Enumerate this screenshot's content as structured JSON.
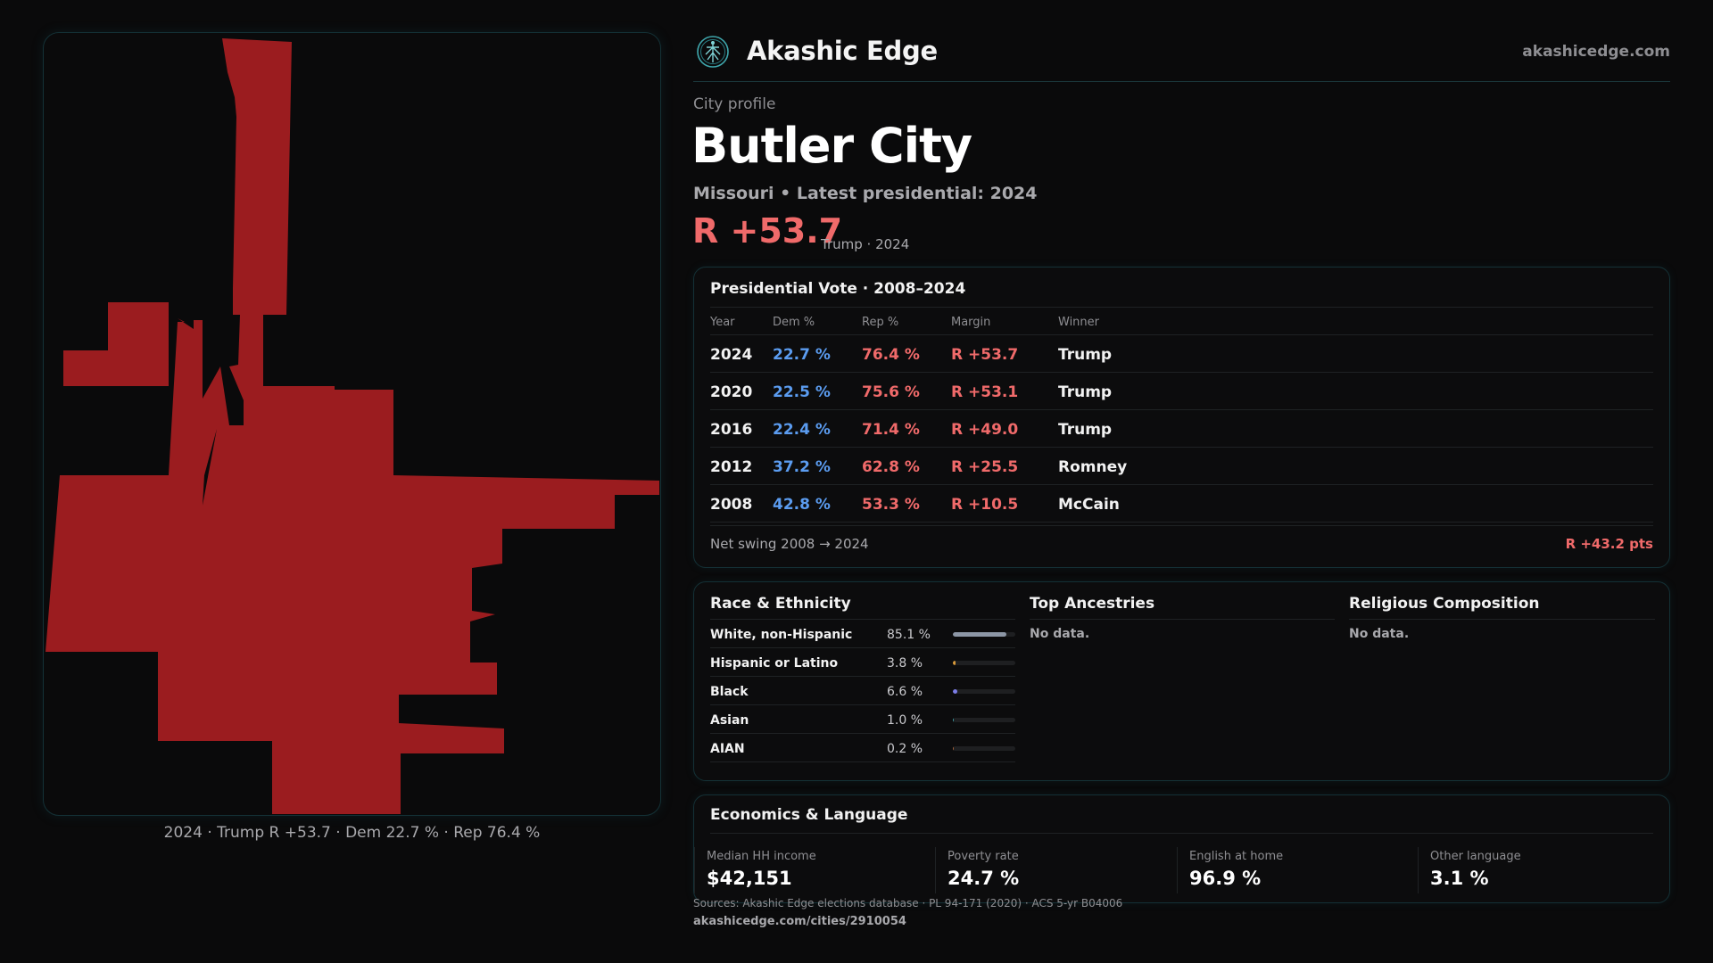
{
  "header": {
    "brand": "Akashic Edge",
    "site": "akashicedge.com",
    "logo_icon": "tree-of-life-icon"
  },
  "profile": {
    "kicker": "City profile",
    "city": "Butler City",
    "subtitle": "Missouri • Latest presidential: 2024",
    "margin": "R +53.7",
    "margin_note": "Trump · 2024"
  },
  "map": {
    "fill_color": "#9b1c1f",
    "caption": "2024 · Trump R +53.7 · Dem 22.7 % · Rep 76.4 %"
  },
  "vote": {
    "title": "Presidential Vote · 2008–2024",
    "headers": {
      "year": "Year",
      "dem": "Dem %",
      "rep": "Rep %",
      "margin": "Margin",
      "winner": "Winner"
    },
    "rows": [
      {
        "year": "2024",
        "dem": "22.7 %",
        "rep": "76.4 %",
        "margin": "R +53.7",
        "winner": "Trump"
      },
      {
        "year": "2020",
        "dem": "22.5 %",
        "rep": "75.6 %",
        "margin": "R +53.1",
        "winner": "Trump"
      },
      {
        "year": "2016",
        "dem": "22.4 %",
        "rep": "71.4 %",
        "margin": "R +49.0",
        "winner": "Trump"
      },
      {
        "year": "2012",
        "dem": "37.2 %",
        "rep": "62.8 %",
        "margin": "R +25.5",
        "winner": "Romney"
      },
      {
        "year": "2008",
        "dem": "42.8 %",
        "rep": "53.3 %",
        "margin": "R +10.5",
        "winner": "McCain"
      }
    ],
    "swing_label": "Net swing 2008 → 2024",
    "swing_value": "R +43.2 pts"
  },
  "demographics": {
    "race_title": "Race & Ethnicity",
    "race": [
      {
        "name": "White, non-Hispanic",
        "pct": "85.1 %",
        "value": 0.851,
        "color": "#8d97a6"
      },
      {
        "name": "Hispanic or Latino",
        "pct": "3.8 %",
        "value": 0.038,
        "color": "#d99a3a"
      },
      {
        "name": "Black",
        "pct": "6.6 %",
        "value": 0.066,
        "color": "#7b7ce6"
      },
      {
        "name": "Asian",
        "pct": "1.0 %",
        "value": 0.01,
        "color": "#3f9aa0"
      },
      {
        "name": "AIAN",
        "pct": "0.2 %",
        "value": 0.002,
        "color": "#a0603a"
      }
    ],
    "ancestry_title": "Top Ancestries",
    "ancestry_text": "No data.",
    "religion_title": "Religious Composition",
    "religion_text": "No data."
  },
  "economics": {
    "title": "Economics & Language",
    "stats": [
      {
        "label": "Median HH income",
        "value": "$42,151"
      },
      {
        "label": "Poverty rate",
        "value": "24.7 %"
      },
      {
        "label": "English at home",
        "value": "96.9 %"
      },
      {
        "label": "Other language",
        "value": "3.1 %"
      }
    ]
  },
  "footer": {
    "sources": "Sources: Akashic Edge elections database · PL 94-171 (2020) · ACS 5-yr B04006",
    "url": "akashicedge.com/cities/2910054"
  }
}
